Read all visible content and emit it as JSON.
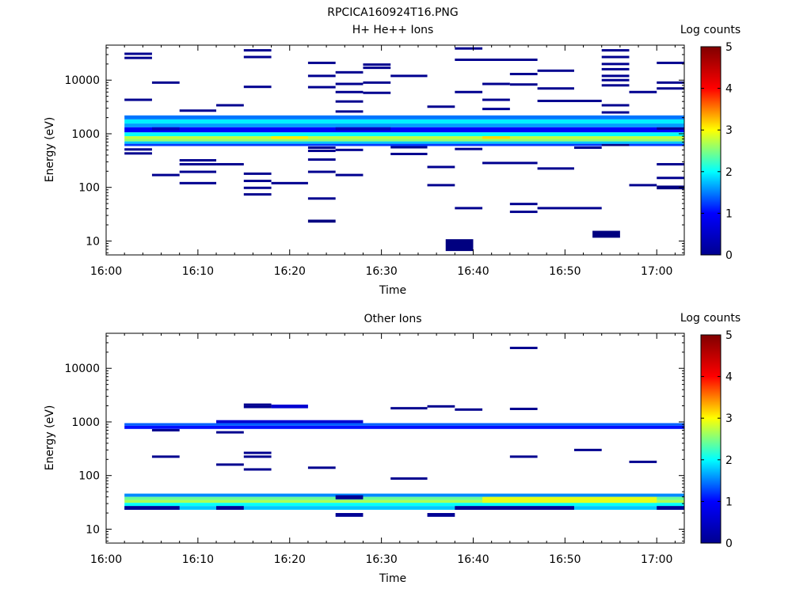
{
  "page_title": "RPCICA160924T16.PNG",
  "colorbar": {
    "label": "Log counts",
    "range": [
      0,
      5
    ],
    "ticks": [
      "0",
      "1",
      "2",
      "3",
      "4",
      "5"
    ],
    "stops": [
      "#00008f",
      "#0000ff",
      "#00ffff",
      "#ffff00",
      "#ff0000",
      "#800000"
    ]
  },
  "chart_data": [
    {
      "type": "heatmap",
      "title": "H+ He++ Ions",
      "xlabel": "Time",
      "ylabel": "Energy (eV)",
      "ylog": true,
      "ylim": [
        5.5,
        45000
      ],
      "xlim": [
        "16:00",
        "17:03"
      ],
      "x_ticks": [
        "16:00",
        "16:10",
        "16:20",
        "16:30",
        "16:40",
        "16:50",
        "17:00"
      ],
      "y_ticks": [
        "10",
        "100",
        "1000",
        "10000"
      ],
      "x_bins": [
        "16:02",
        "16:05",
        "16:08",
        "16:12",
        "16:15",
        "16:18",
        "16:22",
        "16:25",
        "16:28",
        "16:31",
        "16:35",
        "16:38",
        "16:41",
        "16:44",
        "16:47",
        "16:51",
        "16:54",
        "16:57",
        "17:00"
      ],
      "cells": [
        {
          "t0": "16:02",
          "t1": "17:03",
          "e0": 1850,
          "e1": 2200,
          "v": 1.2
        },
        {
          "t0": "16:02",
          "t1": "17:03",
          "e0": 1550,
          "e1": 1850,
          "v": 1.8
        },
        {
          "t0": "16:02",
          "t1": "17:03",
          "e0": 1320,
          "e1": 1550,
          "v": 1.4
        },
        {
          "t0": "16:02",
          "t1": "17:03",
          "e0": 1060,
          "e1": 1320,
          "v": 0.6
        },
        {
          "t0": "16:02",
          "t1": "17:03",
          "e0": 900,
          "e1": 1060,
          "v": 1.9
        },
        {
          "t0": "16:02",
          "t1": "17:03",
          "e0": 800,
          "e1": 900,
          "v": 2.8
        },
        {
          "t0": "16:02",
          "t1": "17:03",
          "e0": 720,
          "e1": 800,
          "v": 2.6
        },
        {
          "t0": "16:02",
          "t1": "17:03",
          "e0": 650,
          "e1": 720,
          "v": 1.6
        },
        {
          "t0": "16:02",
          "t1": "17:03",
          "e0": 590,
          "e1": 650,
          "v": 0.9
        },
        {
          "t0": "16:18",
          "t1": "16:22",
          "e0": 800,
          "e1": 900,
          "v": 3.2
        },
        {
          "t0": "16:41",
          "t1": "16:44",
          "e0": 800,
          "e1": 900,
          "v": 3.3
        },
        {
          "t0": "16:05",
          "t1": "16:08",
          "e0": 1150,
          "e1": 1320,
          "v": 0.3
        },
        {
          "t0": "16:25",
          "t1": "16:31",
          "e0": 1150,
          "e1": 1320,
          "v": 0.3
        },
        {
          "t0": "16:37",
          "t1": "16:40",
          "e0": 6.5,
          "e1": 10.8,
          "v": 0.0
        },
        {
          "t0": "16:53",
          "t1": "16:56",
          "e0": 11.5,
          "e1": 15.5,
          "v": 0.0
        },
        {
          "t0": "16:22",
          "t1": "16:25",
          "e0": 22,
          "e1": 25,
          "v": 0.0
        },
        {
          "t0": "17:00",
          "t1": "17:03",
          "e0": 92,
          "e1": 108,
          "v": 0.0
        },
        {
          "t0": "16:54",
          "t1": "16:57",
          "e0": 590,
          "e1": 640,
          "v": 0.0
        }
      ],
      "lines": [
        {
          "t0": "16:02",
          "t1": "16:05",
          "e": 31000
        },
        {
          "t0": "16:02",
          "t1": "16:05",
          "e": 26000
        },
        {
          "t0": "16:02",
          "t1": "16:05",
          "e": 4300
        },
        {
          "t0": "16:02",
          "t1": "16:05",
          "e": 510
        },
        {
          "t0": "16:02",
          "t1": "16:05",
          "e": 430
        },
        {
          "t0": "16:05",
          "t1": "16:08",
          "e": 9000
        },
        {
          "t0": "16:05",
          "t1": "16:08",
          "e": 170
        },
        {
          "t0": "16:08",
          "t1": "16:12",
          "e": 2700
        },
        {
          "t0": "16:08",
          "t1": "16:12",
          "e": 320
        },
        {
          "t0": "16:08",
          "t1": "16:12",
          "e": 270
        },
        {
          "t0": "16:08",
          "t1": "16:12",
          "e": 195
        },
        {
          "t0": "16:08",
          "t1": "16:12",
          "e": 120
        },
        {
          "t0": "16:12",
          "t1": "16:15",
          "e": 3400
        },
        {
          "t0": "16:12",
          "t1": "16:15",
          "e": 270
        },
        {
          "t0": "16:15",
          "t1": "16:18",
          "e": 36000
        },
        {
          "t0": "16:15",
          "t1": "16:18",
          "e": 27000
        },
        {
          "t0": "16:15",
          "t1": "16:18",
          "e": 7500
        },
        {
          "t0": "16:15",
          "t1": "16:18",
          "e": 180
        },
        {
          "t0": "16:15",
          "t1": "16:18",
          "e": 132
        },
        {
          "t0": "16:15",
          "t1": "16:18",
          "e": 98
        },
        {
          "t0": "16:15",
          "t1": "16:18",
          "e": 74
        },
        {
          "t0": "16:18",
          "t1": "16:22",
          "e": 120
        },
        {
          "t0": "16:22",
          "t1": "16:25",
          "e": 21000
        },
        {
          "t0": "16:22",
          "t1": "16:25",
          "e": 12000
        },
        {
          "t0": "16:22",
          "t1": "16:25",
          "e": 7400
        },
        {
          "t0": "16:22",
          "t1": "16:25",
          "e": 550
        },
        {
          "t0": "16:22",
          "t1": "16:25",
          "e": 480
        },
        {
          "t0": "16:22",
          "t1": "16:25",
          "e": 330
        },
        {
          "t0": "16:22",
          "t1": "16:25",
          "e": 195
        },
        {
          "t0": "16:22",
          "t1": "16:25",
          "e": 62
        },
        {
          "t0": "16:25",
          "t1": "16:28",
          "e": 14000
        },
        {
          "t0": "16:25",
          "t1": "16:28",
          "e": 8500
        },
        {
          "t0": "16:25",
          "t1": "16:28",
          "e": 6000
        },
        {
          "t0": "16:25",
          "t1": "16:28",
          "e": 4000
        },
        {
          "t0": "16:25",
          "t1": "16:28",
          "e": 2600
        },
        {
          "t0": "16:25",
          "t1": "16:28",
          "e": 500
        },
        {
          "t0": "16:25",
          "t1": "16:28",
          "e": 170
        },
        {
          "t0": "16:28",
          "t1": "16:31",
          "e": 19500
        },
        {
          "t0": "16:28",
          "t1": "16:31",
          "e": 17000
        },
        {
          "t0": "16:28",
          "t1": "16:31",
          "e": 9000
        },
        {
          "t0": "16:28",
          "t1": "16:31",
          "e": 5800
        },
        {
          "t0": "16:31",
          "t1": "16:35",
          "e": 12000
        },
        {
          "t0": "16:31",
          "t1": "16:35",
          "e": 560
        },
        {
          "t0": "16:31",
          "t1": "16:35",
          "e": 420
        },
        {
          "t0": "16:35",
          "t1": "16:38",
          "e": 3200
        },
        {
          "t0": "16:35",
          "t1": "16:38",
          "e": 240
        },
        {
          "t0": "16:35",
          "t1": "16:38",
          "e": 110
        },
        {
          "t0": "16:38",
          "t1": "16:41",
          "e": 39000
        },
        {
          "t0": "16:38",
          "t1": "16:47",
          "e": 24000
        },
        {
          "t0": "16:38",
          "t1": "16:41",
          "e": 6000
        },
        {
          "t0": "16:38",
          "t1": "16:41",
          "e": 520
        },
        {
          "t0": "16:38",
          "t1": "16:41",
          "e": 41
        },
        {
          "t0": "16:41",
          "t1": "16:44",
          "e": 8500
        },
        {
          "t0": "16:41",
          "t1": "16:44",
          "e": 4300
        },
        {
          "t0": "16:41",
          "t1": "16:44",
          "e": 2900
        },
        {
          "t0": "16:41",
          "t1": "16:47",
          "e": 285
        },
        {
          "t0": "16:44",
          "t1": "16:47",
          "e": 13000
        },
        {
          "t0": "16:44",
          "t1": "16:47",
          "e": 8300
        },
        {
          "t0": "16:44",
          "t1": "16:47",
          "e": 49
        },
        {
          "t0": "16:44",
          "t1": "16:47",
          "e": 35
        },
        {
          "t0": "16:47",
          "t1": "16:51",
          "e": 15000
        },
        {
          "t0": "16:47",
          "t1": "16:51",
          "e": 7000
        },
        {
          "t0": "16:47",
          "t1": "16:54",
          "e": 4100
        },
        {
          "t0": "16:47",
          "t1": "16:51",
          "e": 225
        },
        {
          "t0": "16:47",
          "t1": "16:54",
          "e": 41
        },
        {
          "t0": "16:51",
          "t1": "16:54",
          "e": 550
        },
        {
          "t0": "16:54",
          "t1": "16:57",
          "e": 36000
        },
        {
          "t0": "16:54",
          "t1": "16:57",
          "e": 27000
        },
        {
          "t0": "16:54",
          "t1": "16:57",
          "e": 20000
        },
        {
          "t0": "16:54",
          "t1": "16:57",
          "e": 16000
        },
        {
          "t0": "16:54",
          "t1": "16:57",
          "e": 12000
        },
        {
          "t0": "16:54",
          "t1": "16:57",
          "e": 10000
        },
        {
          "t0": "16:54",
          "t1": "16:57",
          "e": 8000
        },
        {
          "t0": "16:54",
          "t1": "16:57",
          "e": 3400
        },
        {
          "t0": "16:54",
          "t1": "16:57",
          "e": 2500
        },
        {
          "t0": "16:57",
          "t1": "17:00",
          "e": 6000
        },
        {
          "t0": "16:57",
          "t1": "17:00",
          "e": 110
        },
        {
          "t0": "17:00",
          "t1": "17:03",
          "e": 21000
        },
        {
          "t0": "17:00",
          "t1": "17:03",
          "e": 9000
        },
        {
          "t0": "17:00",
          "t1": "17:03",
          "e": 7000
        },
        {
          "t0": "17:00",
          "t1": "17:03",
          "e": 1250
        },
        {
          "t0": "17:00",
          "t1": "17:03",
          "e": 270
        },
        {
          "t0": "17:00",
          "t1": "17:03",
          "e": 150
        }
      ]
    },
    {
      "type": "heatmap",
      "title": "Other Ions",
      "xlabel": "Time",
      "ylabel": "Energy (eV)",
      "ylog": true,
      "ylim": [
        5.5,
        45000
      ],
      "xlim": [
        "16:00",
        "17:03"
      ],
      "x_ticks": [
        "16:00",
        "16:10",
        "16:20",
        "16:30",
        "16:40",
        "16:50",
        "17:00"
      ],
      "y_ticks": [
        "10",
        "100",
        "1000",
        "10000"
      ],
      "cells": [
        {
          "t0": "16:02",
          "t1": "17:03",
          "e0": 850,
          "e1": 950,
          "v": 1.1
        },
        {
          "t0": "16:02",
          "t1": "17:03",
          "e0": 740,
          "e1": 850,
          "v": 0.7
        },
        {
          "t0": "16:12",
          "t1": "16:28",
          "e0": 950,
          "e1": 1080,
          "v": 0.4
        },
        {
          "t0": "16:18",
          "t1": "16:22",
          "e0": 1800,
          "e1": 2100,
          "v": 0.4
        },
        {
          "t0": "16:02",
          "t1": "17:03",
          "e0": 40,
          "e1": 46,
          "v": 1.3
        },
        {
          "t0": "16:02",
          "t1": "17:03",
          "e0": 35,
          "e1": 40,
          "v": 2.4
        },
        {
          "t0": "16:02",
          "t1": "17:03",
          "e0": 31,
          "e1": 35,
          "v": 2.7
        },
        {
          "t0": "16:02",
          "t1": "17:03",
          "e0": 27,
          "e1": 31,
          "v": 1.9
        },
        {
          "t0": "16:02",
          "t1": "17:03",
          "e0": 23,
          "e1": 27,
          "v": 1.6
        },
        {
          "t0": "16:41",
          "t1": "17:00",
          "e0": 31,
          "e1": 40,
          "v": 3.0
        },
        {
          "t0": "16:02",
          "t1": "16:08",
          "e0": 23,
          "e1": 27,
          "v": 0.1
        },
        {
          "t0": "16:12",
          "t1": "16:15",
          "e0": 23,
          "e1": 27,
          "v": 0.1
        },
        {
          "t0": "16:38",
          "t1": "16:51",
          "e0": 23,
          "e1": 27,
          "v": 0.1
        },
        {
          "t0": "17:00",
          "t1": "17:03",
          "e0": 23,
          "e1": 27,
          "v": 0.1
        },
        {
          "t0": "16:25",
          "t1": "16:28",
          "e0": 36,
          "e1": 43,
          "v": 0.1
        },
        {
          "t0": "16:25",
          "t1": "16:28",
          "e0": 17,
          "e1": 20,
          "v": 0.1
        },
        {
          "t0": "16:35",
          "t1": "16:38",
          "e0": 17,
          "e1": 20,
          "v": 0.1
        }
      ],
      "lines": [
        {
          "t0": "16:05",
          "t1": "16:08",
          "e": 700
        },
        {
          "t0": "16:05",
          "t1": "16:08",
          "e": 225
        },
        {
          "t0": "16:12",
          "t1": "16:15",
          "e": 640
        },
        {
          "t0": "16:12",
          "t1": "16:15",
          "e": 160
        },
        {
          "t0": "16:15",
          "t1": "16:18",
          "e": 2100
        },
        {
          "t0": "16:15",
          "t1": "16:18",
          "e": 1900
        },
        {
          "t0": "16:15",
          "t1": "16:18",
          "e": 265
        },
        {
          "t0": "16:15",
          "t1": "16:18",
          "e": 225
        },
        {
          "t0": "16:15",
          "t1": "16:18",
          "e": 130
        },
        {
          "t0": "16:22",
          "t1": "16:25",
          "e": 140
        },
        {
          "t0": "16:31",
          "t1": "16:35",
          "e": 1800
        },
        {
          "t0": "16:31",
          "t1": "16:35",
          "e": 88
        },
        {
          "t0": "16:35",
          "t1": "16:38",
          "e": 1950
        },
        {
          "t0": "16:38",
          "t1": "16:41",
          "e": 1700
        },
        {
          "t0": "16:44",
          "t1": "16:47",
          "e": 24000
        },
        {
          "t0": "16:44",
          "t1": "16:47",
          "e": 1750
        },
        {
          "t0": "16:44",
          "t1": "16:47",
          "e": 225
        },
        {
          "t0": "16:51",
          "t1": "16:54",
          "e": 300
        },
        {
          "t0": "16:57",
          "t1": "17:00",
          "e": 180
        }
      ]
    }
  ]
}
